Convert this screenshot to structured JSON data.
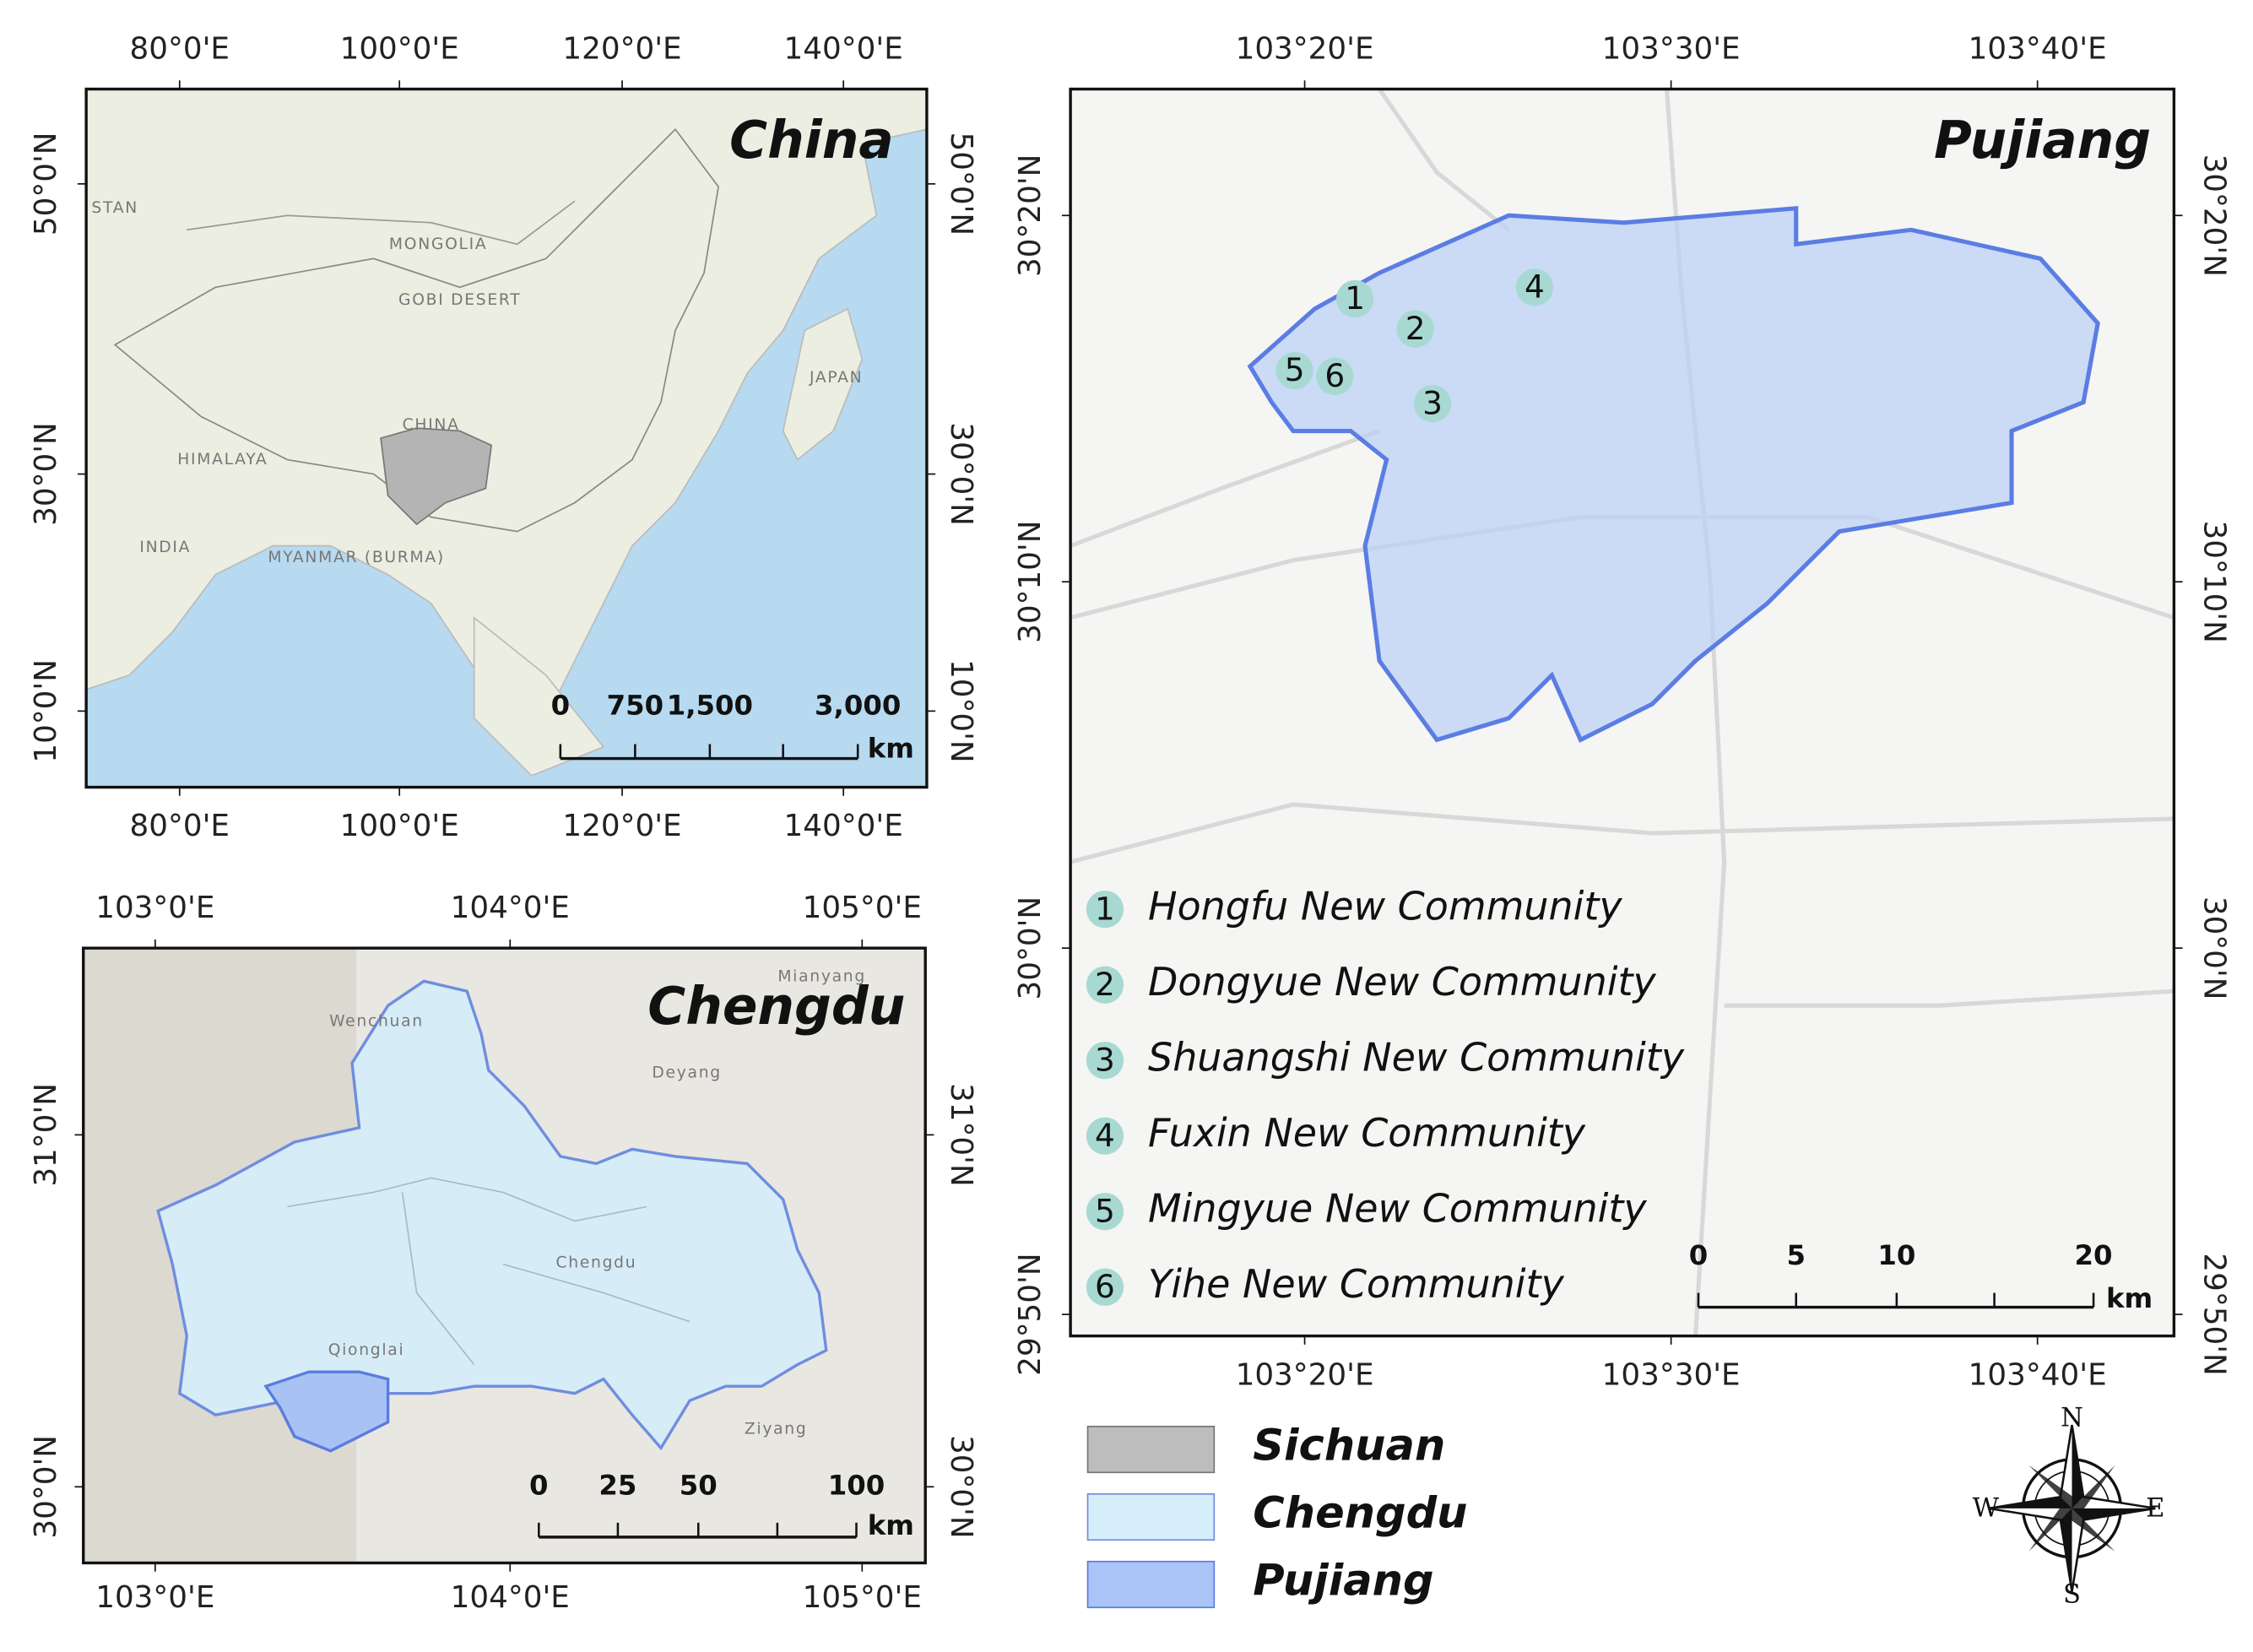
{
  "china": {
    "title": "China",
    "x_ticks": [
      "80°0'E",
      "100°0'E",
      "120°0'E",
      "140°0'E"
    ],
    "y_ticks": [
      "50°0'N",
      "30°0'N",
      "10°0'N"
    ],
    "places": [
      "STAN",
      "MONGOLIA",
      "GOBI DESERT",
      "CHINA",
      "JAPAN",
      "INDIA",
      "MYANMAR (BURMA)",
      "HIMALAYA"
    ],
    "scale": {
      "ticks": [
        "0",
        "750",
        "1,500",
        "3,000"
      ],
      "unit": "km"
    }
  },
  "chengdu": {
    "title": "Chengdu",
    "x_ticks": [
      "103°0'E",
      "104°0'E",
      "105°0'E"
    ],
    "y_ticks": [
      "31°0'N",
      "30°0'N"
    ],
    "places": [
      "Mianyang",
      "Wenchuan",
      "Deyang",
      "Chengdu",
      "Qionglai",
      "Ziyang"
    ],
    "scale": {
      "ticks": [
        "0",
        "25",
        "50",
        "100"
      ],
      "unit": "km"
    }
  },
  "pujiang": {
    "title": "Pujiang",
    "x_ticks": [
      "103°20'E",
      "103°30'E",
      "103°40'E"
    ],
    "y_ticks": [
      "30°20'N",
      "30°10'N",
      "30°0'N",
      "29°50'N"
    ],
    "scale": {
      "ticks": [
        "0",
        "5",
        "10",
        "20"
      ],
      "unit": "km"
    },
    "communities": [
      {
        "number": "1",
        "name": "Hongfu New Community"
      },
      {
        "number": "2",
        "name": "Dongyue New Community"
      },
      {
        "number": "3",
        "name": "Shuangshi New Community"
      },
      {
        "number": "4",
        "name": "Fuxin New Community"
      },
      {
        "number": "5",
        "name": "Mingyue New Community"
      },
      {
        "number": "6",
        "name": "Yihe New Community"
      }
    ]
  },
  "legend": [
    "Sichuan",
    "Chengdu",
    "Pujiang"
  ],
  "compass": {
    "north": "N",
    "south": "S",
    "east": "E",
    "west": "W"
  }
}
